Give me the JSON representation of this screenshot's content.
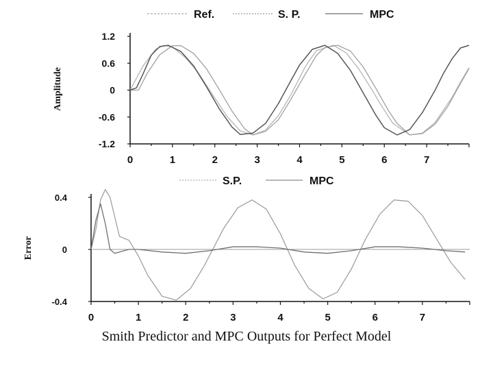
{
  "caption": "Smith Predictor and MPC Outputs for Perfect Model",
  "chart_data": [
    {
      "type": "line",
      "ylabel": "Amplitude",
      "xlim": [
        0,
        8
      ],
      "ylim": [
        -1.2,
        1.2
      ],
      "xticks": [
        0,
        1,
        2,
        3,
        4,
        5,
        6,
        7
      ],
      "yticks": [
        1.2,
        0.6,
        0,
        -0.6,
        -1.2
      ],
      "xtick_labels": [
        "0",
        "1",
        "2",
        "3",
        "4",
        "5",
        "6",
        "7"
      ],
      "ytick_labels": [
        "1.2",
        "0.6",
        "0",
        "-0.6",
        "-1.2"
      ],
      "legend_position": "top",
      "series": [
        {
          "name": "Ref.",
          "x": [
            0,
            0.3,
            0.6,
            0.8,
            1.0,
            1.3,
            1.6,
            2.0,
            2.3,
            2.6,
            2.9,
            3.2,
            3.5,
            3.8,
            4.1,
            4.2,
            4.4,
            4.8,
            5.1,
            5.4,
            5.7,
            5.9,
            6.2,
            6.6,
            6.9,
            7.2,
            7.5,
            7.6,
            7.8,
            8.0
          ],
          "y": [
            0.0,
            0.53,
            0.91,
            1.0,
            0.96,
            0.73,
            0.4,
            -0.18,
            -0.6,
            -0.91,
            -1.0,
            -0.89,
            -0.57,
            -0.1,
            0.46,
            0.62,
            0.88,
            1.0,
            0.83,
            0.47,
            0.02,
            -0.3,
            -0.74,
            -1.0,
            -0.96,
            -0.72,
            -0.3,
            -0.16,
            0.18,
            0.5
          ]
        },
        {
          "name": "S. P.",
          "x": [
            0,
            0.2,
            0.4,
            0.7,
            1.0,
            1.2,
            1.5,
            1.8,
            2.1,
            2.4,
            2.7,
            2.9,
            3.2,
            3.5,
            3.8,
            4.1,
            4.4,
            4.6,
            4.9,
            5.2,
            5.5,
            5.8,
            6.1,
            6.3,
            6.6,
            6.9,
            7.2,
            7.5,
            7.8,
            8.0
          ],
          "y": [
            0.0,
            0.0,
            0.37,
            0.79,
            0.99,
            0.99,
            0.82,
            0.48,
            0.02,
            -0.46,
            -0.86,
            -1.0,
            -0.92,
            -0.66,
            -0.2,
            0.3,
            0.78,
            0.95,
            1.0,
            0.87,
            0.52,
            0.04,
            -0.46,
            -0.74,
            -1.0,
            -0.97,
            -0.76,
            -0.36,
            0.15,
            0.48
          ]
        },
        {
          "name": "MPC",
          "x": [
            0,
            0.15,
            0.3,
            0.5,
            0.7,
            0.9,
            1.2,
            1.5,
            1.8,
            2.1,
            2.4,
            2.6,
            2.9,
            3.2,
            3.5,
            3.8,
            4.0,
            4.3,
            4.6,
            4.9,
            5.2,
            5.5,
            5.8,
            6.0,
            6.3,
            6.6,
            6.9,
            7.2,
            7.4,
            7.6,
            7.8,
            8.0
          ],
          "y": [
            0.0,
            0.05,
            0.35,
            0.78,
            0.97,
            1.0,
            0.86,
            0.54,
            0.08,
            -0.41,
            -0.82,
            -0.99,
            -0.96,
            -0.74,
            -0.3,
            0.22,
            0.56,
            0.91,
            1.0,
            0.82,
            0.44,
            -0.06,
            -0.56,
            -0.84,
            -1.0,
            -0.88,
            -0.5,
            0.0,
            0.38,
            0.7,
            0.94,
            1.0
          ]
        }
      ]
    },
    {
      "type": "line",
      "ylabel": "Error",
      "xlim": [
        0,
        8
      ],
      "ylim": [
        -0.4,
        0.4
      ],
      "xticks": [
        0,
        1,
        2,
        3,
        4,
        5,
        6,
        7
      ],
      "yticks": [
        0.4,
        0,
        -0.4
      ],
      "xtick_labels": [
        "0",
        "1",
        "2",
        "3",
        "4",
        "5",
        "6",
        "7"
      ],
      "ytick_labels": [
        "0.4",
        "0",
        "-0.4"
      ],
      "legend_position": "top",
      "series": [
        {
          "name": "S.P.",
          "x": [
            0,
            0.1,
            0.2,
            0.3,
            0.4,
            0.5,
            0.6,
            0.8,
            1.0,
            1.2,
            1.5,
            1.8,
            2.1,
            2.4,
            2.8,
            3.1,
            3.4,
            3.7,
            4.0,
            4.3,
            4.6,
            4.9,
            5.2,
            5.5,
            5.8,
            6.1,
            6.4,
            6.7,
            7.0,
            7.3,
            7.6,
            7.9
          ],
          "y": [
            0.0,
            0.15,
            0.38,
            0.46,
            0.4,
            0.25,
            0.1,
            0.07,
            -0.05,
            -0.2,
            -0.36,
            -0.39,
            -0.3,
            -0.12,
            0.16,
            0.32,
            0.38,
            0.31,
            0.12,
            -0.12,
            -0.3,
            -0.38,
            -0.33,
            -0.15,
            0.08,
            0.27,
            0.38,
            0.37,
            0.26,
            0.08,
            -0.1,
            -0.23
          ]
        },
        {
          "name": "MPC",
          "x": [
            0,
            0.1,
            0.2,
            0.3,
            0.4,
            0.5,
            0.6,
            0.8,
            1.0,
            1.5,
            2.0,
            2.5,
            3.0,
            3.5,
            4.0,
            4.5,
            5.0,
            5.5,
            6.0,
            6.5,
            7.0,
            7.5,
            7.9
          ],
          "y": [
            0.0,
            0.22,
            0.35,
            0.2,
            0.0,
            -0.03,
            -0.02,
            0.0,
            0.0,
            -0.02,
            -0.03,
            -0.01,
            0.02,
            0.02,
            0.01,
            -0.02,
            -0.03,
            -0.01,
            0.02,
            0.02,
            0.01,
            -0.01,
            -0.02
          ]
        }
      ]
    }
  ]
}
